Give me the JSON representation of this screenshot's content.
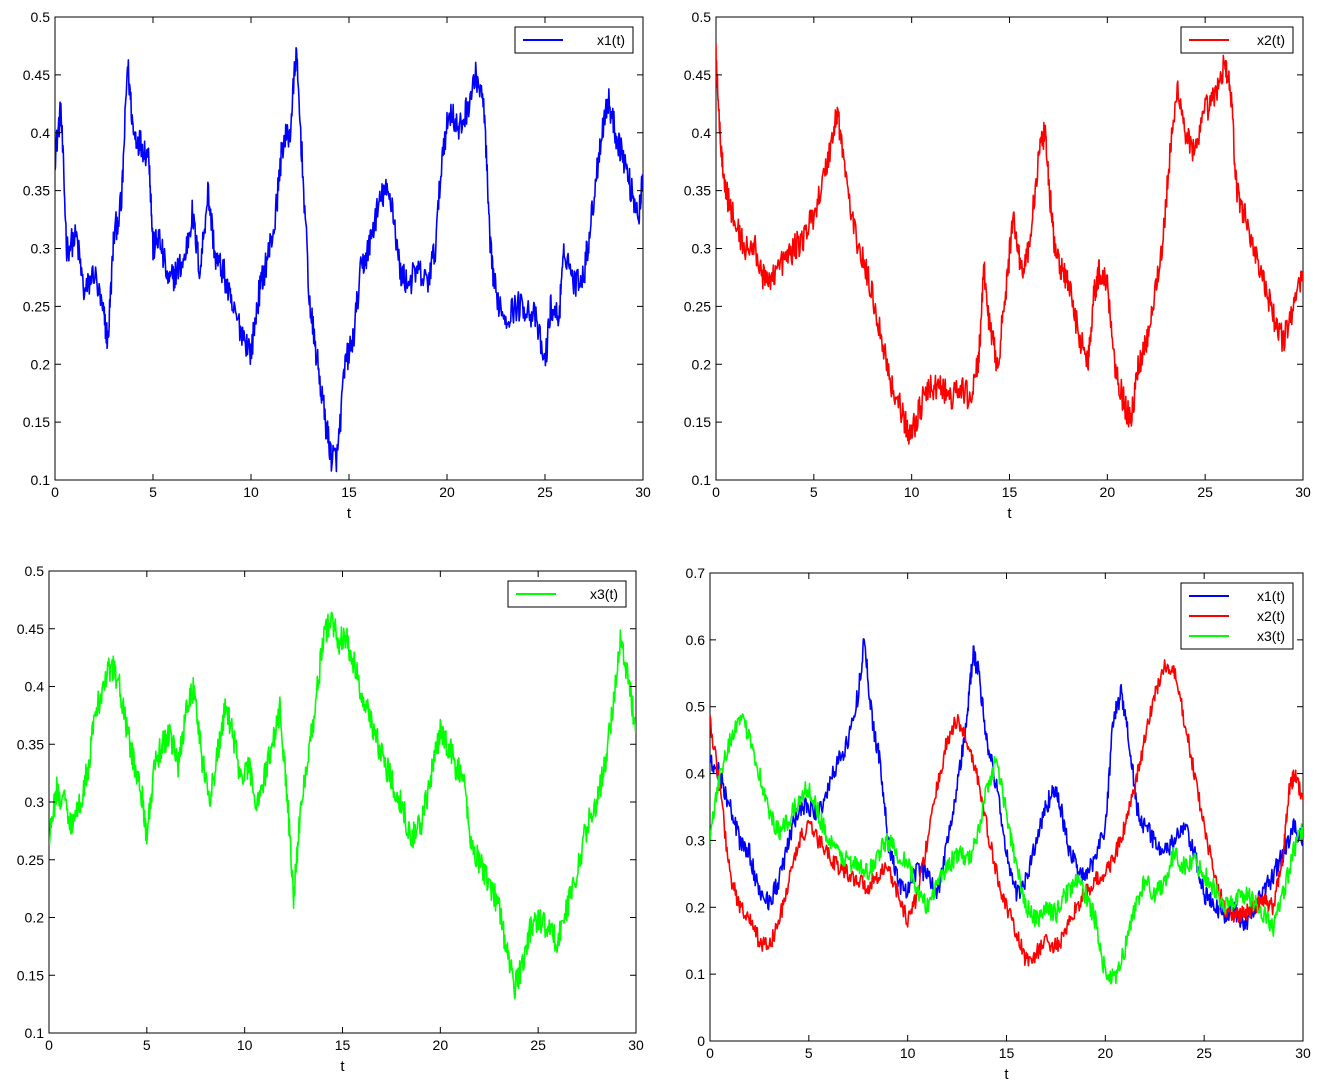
{
  "chart_data": [
    {
      "type": "line",
      "xlabel": "t",
      "ylabel": "",
      "xlim": [
        0,
        30
      ],
      "ylim": [
        0.1,
        0.5
      ],
      "xticks": [
        0,
        5,
        10,
        15,
        20,
        25,
        30
      ],
      "yticks": [
        0.1,
        0.15,
        0.2,
        0.25,
        0.3,
        0.35,
        0.4,
        0.45,
        0.5
      ],
      "legend_position": "top-right",
      "grid": false,
      "series": [
        {
          "name": "x1(t)",
          "color": "#0000ff",
          "x": [
            0,
            0.3,
            0.6,
            1.1,
            1.5,
            2.0,
            2.5,
            2.7,
            3.0,
            3.4,
            3.7,
            4.0,
            4.4,
            4.8,
            5.0,
            5.3,
            5.8,
            6.2,
            6.6,
            7.0,
            7.4,
            7.8,
            8.2,
            8.6,
            9.0,
            9.5,
            10.0,
            10.4,
            10.8,
            11.2,
            11.6,
            12.0,
            12.3,
            12.6,
            13.0,
            13.4,
            13.8,
            14.1,
            14.4,
            14.8,
            15.2,
            15.6,
            16.0,
            16.4,
            16.8,
            17.2,
            17.6,
            18.0,
            18.5,
            19.0,
            19.4,
            19.8,
            20.2,
            20.6,
            21.0,
            21.5,
            21.9,
            22.2,
            22.5,
            23.0,
            23.5,
            24.0,
            24.5,
            25.0,
            25.3,
            25.7,
            26.0,
            26.5,
            27.0,
            27.4,
            27.8,
            28.2,
            28.6,
            29.0,
            29.4,
            29.8,
            30.0
          ],
          "y": [
            0.38,
            0.42,
            0.3,
            0.31,
            0.26,
            0.28,
            0.24,
            0.22,
            0.31,
            0.34,
            0.46,
            0.4,
            0.39,
            0.38,
            0.3,
            0.31,
            0.27,
            0.28,
            0.29,
            0.33,
            0.28,
            0.35,
            0.29,
            0.28,
            0.25,
            0.23,
            0.21,
            0.26,
            0.29,
            0.32,
            0.39,
            0.4,
            0.47,
            0.38,
            0.25,
            0.2,
            0.15,
            0.12,
            0.12,
            0.2,
            0.22,
            0.28,
            0.3,
            0.33,
            0.35,
            0.34,
            0.28,
            0.27,
            0.28,
            0.27,
            0.3,
            0.39,
            0.42,
            0.4,
            0.42,
            0.45,
            0.42,
            0.3,
            0.26,
            0.24,
            0.25,
            0.25,
            0.24,
            0.2,
            0.25,
            0.24,
            0.3,
            0.27,
            0.28,
            0.33,
            0.39,
            0.43,
            0.4,
            0.38,
            0.35,
            0.33,
            0.36
          ],
          "noise": 0.013
        }
      ]
    },
    {
      "type": "line",
      "xlabel": "t",
      "ylabel": "",
      "xlim": [
        0,
        30
      ],
      "ylim": [
        0.1,
        0.5
      ],
      "xticks": [
        0,
        5,
        10,
        15,
        20,
        25,
        30
      ],
      "yticks": [
        0.1,
        0.15,
        0.2,
        0.25,
        0.3,
        0.35,
        0.4,
        0.45,
        0.5
      ],
      "legend_position": "top-right",
      "grid": false,
      "series": [
        {
          "name": "x2(t)",
          "color": "#ff0000",
          "x": [
            0,
            0.2,
            0.5,
            1.0,
            1.5,
            2.0,
            2.5,
            3.0,
            3.5,
            4.0,
            4.5,
            5.0,
            5.5,
            6.0,
            6.2,
            6.5,
            7.0,
            7.5,
            8.0,
            8.5,
            9.0,
            9.5,
            9.8,
            10.2,
            10.6,
            11.0,
            11.5,
            12.0,
            12.5,
            13.0,
            13.4,
            13.7,
            14.0,
            14.4,
            14.8,
            15.2,
            15.6,
            16.0,
            16.5,
            16.8,
            17.0,
            17.3,
            17.7,
            18.0,
            18.5,
            19.0,
            19.3,
            19.6,
            20.0,
            20.4,
            20.8,
            21.2,
            21.6,
            22.0,
            22.4,
            22.8,
            23.2,
            23.6,
            24.0,
            24.5,
            25.0,
            25.5,
            26.0,
            26.3,
            26.6,
            27.0,
            27.5,
            28.0,
            28.5,
            29.0,
            29.5,
            30.0
          ],
          "y": [
            0.47,
            0.4,
            0.35,
            0.32,
            0.3,
            0.3,
            0.27,
            0.28,
            0.29,
            0.3,
            0.31,
            0.33,
            0.36,
            0.4,
            0.42,
            0.38,
            0.32,
            0.29,
            0.26,
            0.22,
            0.18,
            0.16,
            0.14,
            0.15,
            0.17,
            0.18,
            0.18,
            0.17,
            0.18,
            0.17,
            0.2,
            0.28,
            0.23,
            0.2,
            0.26,
            0.33,
            0.28,
            0.3,
            0.38,
            0.4,
            0.36,
            0.3,
            0.28,
            0.27,
            0.23,
            0.2,
            0.26,
            0.28,
            0.27,
            0.2,
            0.17,
            0.15,
            0.2,
            0.22,
            0.26,
            0.3,
            0.38,
            0.44,
            0.4,
            0.38,
            0.42,
            0.43,
            0.46,
            0.44,
            0.35,
            0.33,
            0.3,
            0.27,
            0.24,
            0.22,
            0.25,
            0.28
          ],
          "noise": 0.012
        }
      ]
    },
    {
      "type": "line",
      "xlabel": "t",
      "ylabel": "",
      "xlim": [
        0,
        30
      ],
      "ylim": [
        0.1,
        0.5
      ],
      "xticks": [
        0,
        5,
        10,
        15,
        20,
        25,
        30
      ],
      "yticks": [
        0.1,
        0.15,
        0.2,
        0.25,
        0.3,
        0.35,
        0.4,
        0.45,
        0.5
      ],
      "legend_position": "top-right",
      "grid": false,
      "series": [
        {
          "name": "x3(t)",
          "color": "#00ff00",
          "x": [
            0,
            0.4,
            0.8,
            1.2,
            1.6,
            2.0,
            2.4,
            2.8,
            3.2,
            3.6,
            4.0,
            4.4,
            4.8,
            5.0,
            5.4,
            5.8,
            6.2,
            6.6,
            7.0,
            7.4,
            7.8,
            8.2,
            8.6,
            9.0,
            9.4,
            9.8,
            10.2,
            10.6,
            11.0,
            11.4,
            11.8,
            12.2,
            12.5,
            12.8,
            13.2,
            13.6,
            14.0,
            14.4,
            14.8,
            15.2,
            15.6,
            16.0,
            16.5,
            17.0,
            17.5,
            18.0,
            18.5,
            19.0,
            19.5,
            20.0,
            20.4,
            20.8,
            21.2,
            21.6,
            22.0,
            22.5,
            23.0,
            23.4,
            23.8,
            24.2,
            24.6,
            25.0,
            25.5,
            26.0,
            26.5,
            27.0,
            27.5,
            28.0,
            28.4,
            28.8,
            29.2,
            29.6,
            30.0
          ],
          "y": [
            0.27,
            0.31,
            0.3,
            0.28,
            0.3,
            0.33,
            0.38,
            0.4,
            0.42,
            0.4,
            0.36,
            0.33,
            0.3,
            0.27,
            0.33,
            0.35,
            0.36,
            0.33,
            0.38,
            0.4,
            0.34,
            0.3,
            0.34,
            0.38,
            0.36,
            0.32,
            0.33,
            0.3,
            0.32,
            0.35,
            0.38,
            0.3,
            0.22,
            0.28,
            0.34,
            0.38,
            0.44,
            0.46,
            0.44,
            0.44,
            0.42,
            0.39,
            0.37,
            0.34,
            0.32,
            0.3,
            0.27,
            0.28,
            0.32,
            0.36,
            0.35,
            0.33,
            0.32,
            0.26,
            0.25,
            0.23,
            0.21,
            0.17,
            0.14,
            0.16,
            0.19,
            0.2,
            0.19,
            0.18,
            0.21,
            0.24,
            0.28,
            0.3,
            0.33,
            0.38,
            0.44,
            0.41,
            0.36
          ],
          "noise": 0.012
        }
      ]
    },
    {
      "type": "line",
      "xlabel": "t",
      "ylabel": "",
      "xlim": [
        0,
        30
      ],
      "ylim": [
        0,
        0.7
      ],
      "xticks": [
        0,
        5,
        10,
        15,
        20,
        25,
        30
      ],
      "yticks": [
        0,
        0.1,
        0.2,
        0.3,
        0.4,
        0.5,
        0.6,
        0.7
      ],
      "legend_position": "top-right",
      "grid": false,
      "series": [
        {
          "name": "x1(t)",
          "color": "#0000ff",
          "x": [
            0,
            0.5,
            1.0,
            1.5,
            2.0,
            2.5,
            3.0,
            3.5,
            4.0,
            4.5,
            5.0,
            5.5,
            6.0,
            6.5,
            7.0,
            7.5,
            7.8,
            8.2,
            8.6,
            9.0,
            9.5,
            10.0,
            10.5,
            11.0,
            11.5,
            12.0,
            12.5,
            13.0,
            13.3,
            13.6,
            14.0,
            14.5,
            15.0,
            15.5,
            16.0,
            16.5,
            17.0,
            17.4,
            17.8,
            18.2,
            18.6,
            19.0,
            19.5,
            20.0,
            20.4,
            20.8,
            21.2,
            21.6,
            22.0,
            22.5,
            23.0,
            23.5,
            24.0,
            24.5,
            25.0,
            25.5,
            26.0,
            26.5,
            27.0,
            27.5,
            28.0,
            28.5,
            29.0,
            29.5,
            30.0
          ],
          "y": [
            0.42,
            0.4,
            0.35,
            0.3,
            0.28,
            0.22,
            0.21,
            0.24,
            0.3,
            0.35,
            0.35,
            0.34,
            0.38,
            0.42,
            0.45,
            0.52,
            0.6,
            0.48,
            0.42,
            0.3,
            0.24,
            0.22,
            0.26,
            0.25,
            0.22,
            0.3,
            0.38,
            0.48,
            0.58,
            0.55,
            0.45,
            0.38,
            0.28,
            0.22,
            0.24,
            0.3,
            0.35,
            0.38,
            0.34,
            0.28,
            0.26,
            0.24,
            0.28,
            0.32,
            0.48,
            0.52,
            0.45,
            0.35,
            0.32,
            0.3,
            0.28,
            0.3,
            0.32,
            0.28,
            0.22,
            0.2,
            0.19,
            0.2,
            0.17,
            0.2,
            0.22,
            0.25,
            0.28,
            0.32,
            0.3
          ],
          "noise": 0.015
        },
        {
          "name": "x2(t)",
          "color": "#ff0000",
          "x": [
            0,
            0.5,
            1.0,
            1.5,
            2.0,
            2.5,
            3.0,
            3.5,
            4.0,
            4.5,
            5.0,
            5.5,
            6.0,
            6.5,
            7.0,
            7.5,
            8.0,
            8.5,
            9.0,
            9.5,
            10.0,
            10.5,
            11.0,
            11.5,
            12.0,
            12.5,
            13.0,
            13.5,
            14.0,
            14.5,
            15.0,
            15.5,
            16.0,
            16.5,
            17.0,
            17.5,
            18.0,
            18.5,
            19.0,
            19.5,
            20.0,
            20.5,
            21.0,
            21.5,
            22.0,
            22.5,
            23.0,
            23.5,
            24.0,
            24.5,
            25.0,
            25.5,
            26.0,
            26.5,
            27.0,
            27.5,
            28.0,
            28.5,
            29.0,
            29.3,
            29.6,
            30.0
          ],
          "y": [
            0.48,
            0.38,
            0.25,
            0.2,
            0.18,
            0.15,
            0.14,
            0.18,
            0.24,
            0.3,
            0.32,
            0.3,
            0.28,
            0.26,
            0.25,
            0.24,
            0.23,
            0.25,
            0.26,
            0.22,
            0.18,
            0.22,
            0.3,
            0.38,
            0.45,
            0.48,
            0.45,
            0.4,
            0.32,
            0.25,
            0.2,
            0.16,
            0.12,
            0.13,
            0.15,
            0.14,
            0.16,
            0.2,
            0.22,
            0.24,
            0.25,
            0.28,
            0.32,
            0.38,
            0.45,
            0.52,
            0.56,
            0.55,
            0.48,
            0.4,
            0.32,
            0.25,
            0.2,
            0.19,
            0.19,
            0.2,
            0.21,
            0.2,
            0.28,
            0.38,
            0.4,
            0.36
          ],
          "noise": 0.013
        },
        {
          "name": "x3(t)",
          "color": "#00ff00",
          "x": [
            0,
            0.5,
            1.0,
            1.5,
            2.0,
            2.5,
            3.0,
            3.5,
            4.0,
            4.5,
            5.0,
            5.5,
            6.0,
            6.5,
            7.0,
            7.5,
            8.0,
            8.5,
            9.0,
            9.5,
            10.0,
            10.5,
            11.0,
            11.5,
            12.0,
            12.5,
            13.0,
            13.5,
            14.0,
            14.5,
            15.0,
            15.5,
            16.0,
            16.5,
            17.0,
            17.5,
            18.0,
            18.5,
            19.0,
            19.5,
            20.0,
            20.5,
            21.0,
            21.5,
            22.0,
            22.5,
            23.0,
            23.5,
            24.0,
            24.5,
            25.0,
            25.5,
            26.0,
            26.5,
            27.0,
            27.5,
            28.0,
            28.5,
            29.0,
            29.5,
            30.0
          ],
          "y": [
            0.3,
            0.4,
            0.45,
            0.48,
            0.46,
            0.4,
            0.34,
            0.31,
            0.33,
            0.36,
            0.38,
            0.34,
            0.3,
            0.28,
            0.27,
            0.26,
            0.25,
            0.28,
            0.3,
            0.28,
            0.27,
            0.22,
            0.2,
            0.24,
            0.26,
            0.28,
            0.27,
            0.3,
            0.38,
            0.42,
            0.34,
            0.26,
            0.2,
            0.18,
            0.2,
            0.19,
            0.22,
            0.24,
            0.22,
            0.18,
            0.1,
            0.09,
            0.14,
            0.2,
            0.24,
            0.22,
            0.24,
            0.28,
            0.26,
            0.27,
            0.25,
            0.23,
            0.2,
            0.21,
            0.22,
            0.21,
            0.19,
            0.17,
            0.22,
            0.28,
            0.32
          ],
          "noise": 0.015
        }
      ]
    }
  ]
}
